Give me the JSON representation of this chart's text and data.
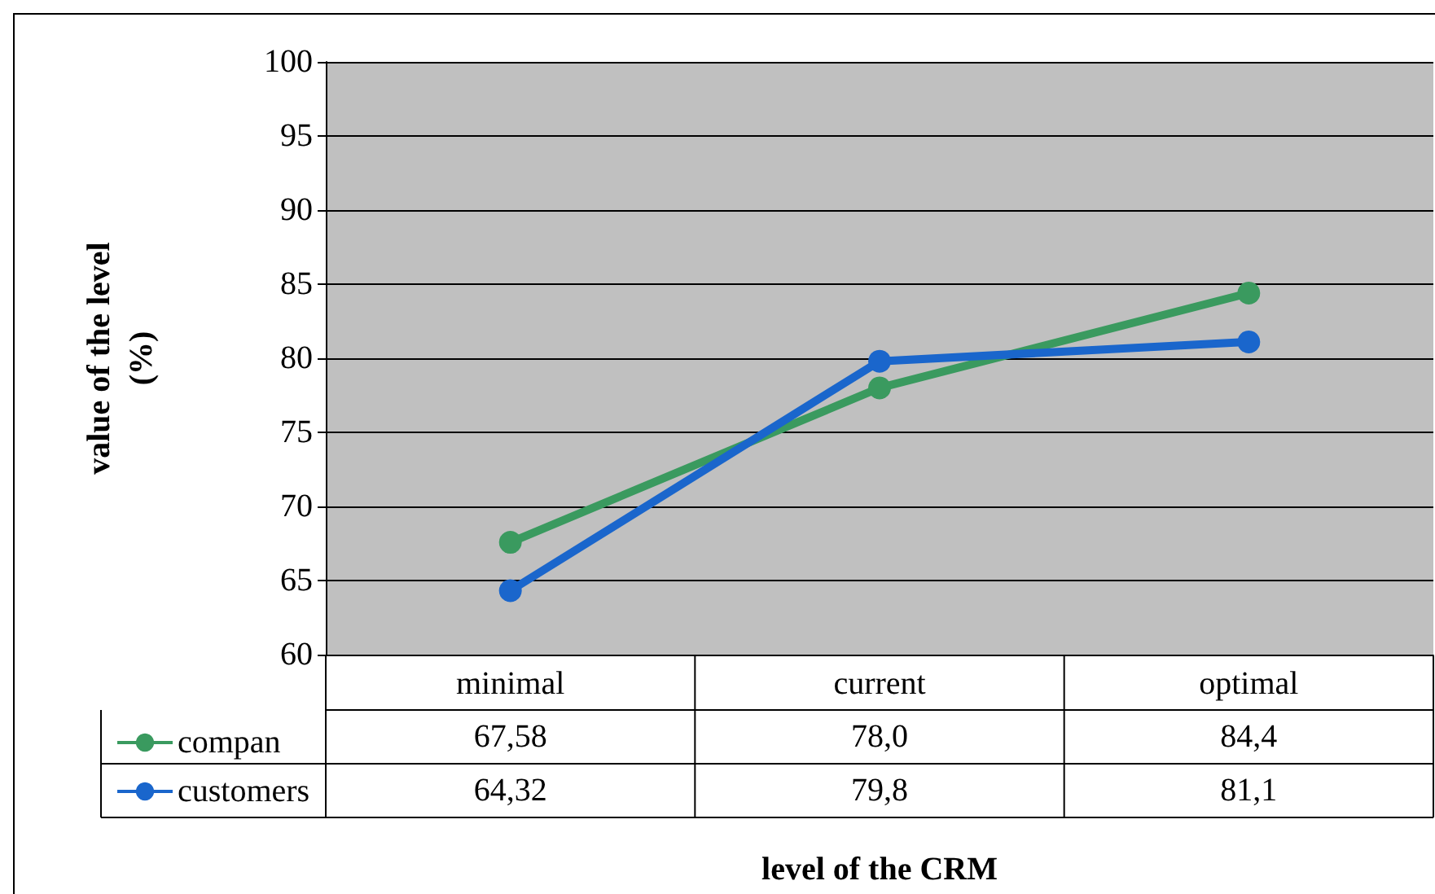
{
  "chart_data": {
    "type": "line",
    "xlabel": "level of the CRM",
    "ylabel": "value of the level\n(%)",
    "categories": [
      "minimal",
      "current",
      "optimal"
    ],
    "series": [
      {
        "name": "compan",
        "color": "#3a9a5f",
        "values": [
          67.58,
          78.0,
          84.4
        ],
        "value_labels": [
          "67,58",
          "78,0",
          "84,4"
        ]
      },
      {
        "name": "customers",
        "color": "#1a66cc",
        "values": [
          64.32,
          79.8,
          81.1
        ],
        "value_labels": [
          "64,32",
          "79,8",
          "81,1"
        ]
      }
    ],
    "ylim": [
      60,
      100
    ],
    "yticks": [
      60,
      65,
      70,
      75,
      80,
      85,
      90,
      95,
      100
    ],
    "grid": "y",
    "legend": "bottom left",
    "marker": "circle",
    "line_style": "solid"
  }
}
